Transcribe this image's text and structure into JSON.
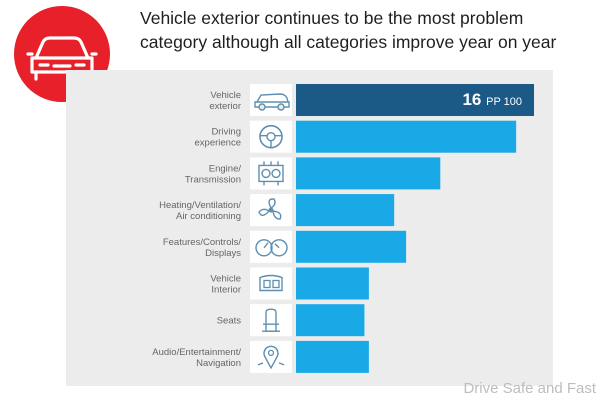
{
  "header": {
    "title": "Vehicle exterior continues to be the most problem category although all categories improve year on year"
  },
  "badge": {
    "icon": "car-icon",
    "color": "#e8202a"
  },
  "colors": {
    "highlight": "#1b5a86",
    "bar": "#18a9e6",
    "panel": "#ececec"
  },
  "chart_data": {
    "type": "bar",
    "orientation": "horizontal",
    "unit": "PP 100",
    "categories": [
      [
        "Vehicle",
        "exterior"
      ],
      [
        "Driving",
        "experience"
      ],
      [
        "Engine/",
        "Transmission"
      ],
      [
        "Heating/Ventilation/",
        "Air conditioning"
      ],
      [
        "Features/Controls/",
        "Displays"
      ],
      [
        "Vehicle",
        "Interior"
      ],
      [
        "Seats"
      ],
      [
        "Audio/Entertainment/",
        "Navigation"
      ]
    ],
    "icons": [
      "car-icon",
      "steering-wheel-icon",
      "engine-icon",
      "fan-icon",
      "gauge-icon",
      "car-interior-icon",
      "seat-icon",
      "navigation-icon"
    ],
    "values": [
      16,
      14.8,
      9.7,
      6.6,
      7.4,
      4.9,
      4.6,
      4.9
    ],
    "labels": {
      "0": {
        "value": "16",
        "unit": "PP 100"
      }
    },
    "highlight_index": 0,
    "xlim": [
      0,
      16
    ]
  },
  "watermark": "Drive Safe and Fast"
}
